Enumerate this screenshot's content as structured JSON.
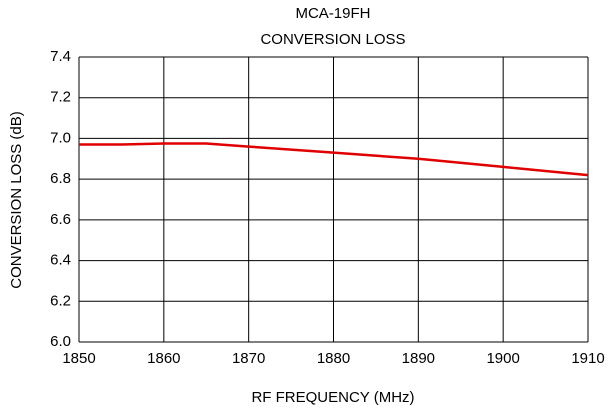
{
  "chart_data": {
    "type": "line",
    "title": "MCA-19FH",
    "subtitle": "CONVERSION LOSS",
    "x_label": "RF FREQUENCY (MHz)",
    "y_label": "CONVERSION LOSS (dB)",
    "x": [
      1850,
      1855,
      1860,
      1865,
      1870,
      1880,
      1890,
      1900,
      1910
    ],
    "series": [
      {
        "name": "Conversion Loss",
        "color": "#e00000",
        "values": [
          6.97,
          6.97,
          6.975,
          6.975,
          6.96,
          6.93,
          6.9,
          6.86,
          6.82
        ]
      }
    ],
    "xlim": [
      1850,
      1910
    ],
    "xticks": [
      1850,
      1860,
      1870,
      1880,
      1890,
      1900,
      1910
    ],
    "ylim": [
      6.0,
      7.4
    ],
    "yticks": [
      {
        "value": 6.0,
        "label": "6.0"
      },
      6.2,
      6.4,
      6.6,
      6.8,
      {
        "value": 7.0,
        "label": "7.0"
      },
      7.2,
      7.4
    ],
    "grid": true
  }
}
